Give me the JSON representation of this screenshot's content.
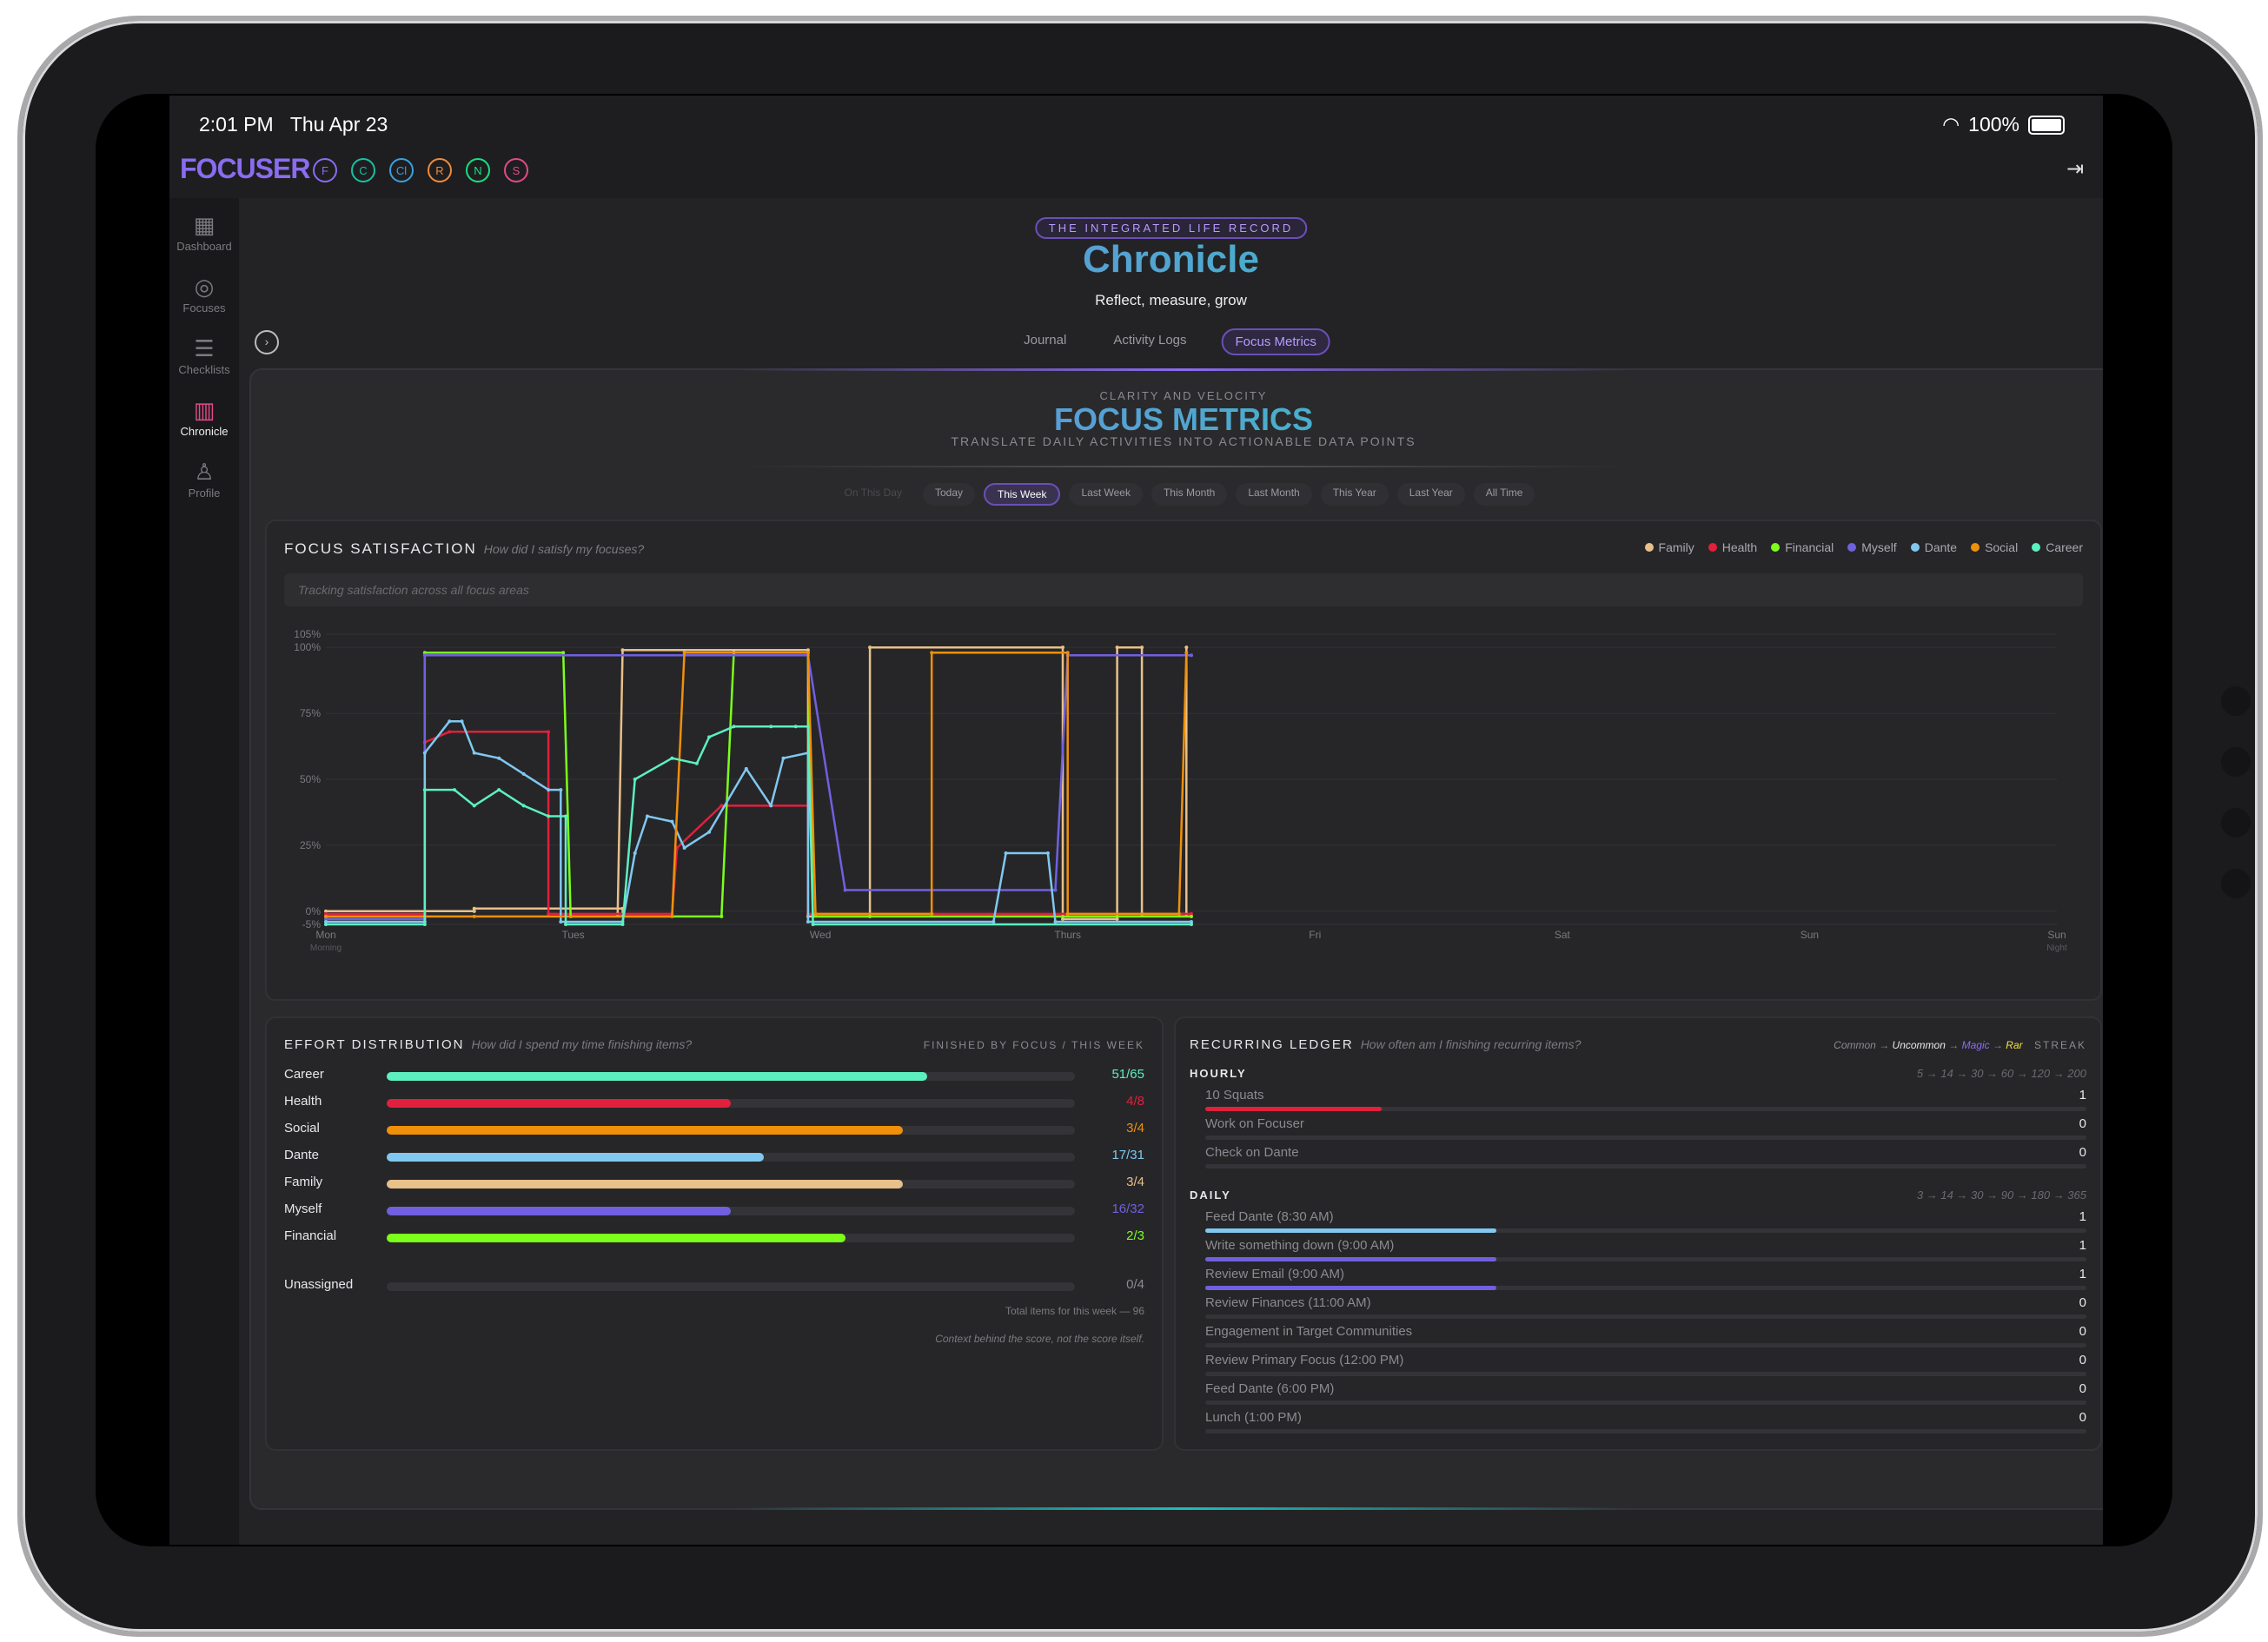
{
  "status": {
    "time": "2:01 PM",
    "date": "Thu Apr 23",
    "battery": "100%"
  },
  "app": {
    "logo": "FOCUSER"
  },
  "focus_chips": [
    {
      "label": "F",
      "color": "#8a6cf0"
    },
    {
      "label": "C",
      "color": "#18c0a0"
    },
    {
      "label": "Cl",
      "color": "#3aa0e0"
    },
    {
      "label": "R",
      "color": "#f08a3a"
    },
    {
      "label": "N",
      "color": "#18e080"
    },
    {
      "label": "S",
      "color": "#e04a8a"
    }
  ],
  "sidebar": {
    "items": [
      {
        "label": "Dashboard",
        "icon": "grid-icon",
        "glyph": "▦"
      },
      {
        "label": "Focuses",
        "icon": "target-icon",
        "glyph": "◎"
      },
      {
        "label": "Checklists",
        "icon": "list-icon",
        "glyph": "☰"
      },
      {
        "label": "Chronicle",
        "icon": "books-icon",
        "glyph": "▥"
      },
      {
        "label": "Profile",
        "icon": "user-icon",
        "glyph": "♙"
      }
    ]
  },
  "header": {
    "pill": "THE INTEGRATED LIFE RECORD",
    "title": "Chronicle",
    "subtitle": "Reflect, measure, grow",
    "tabs": [
      "Journal",
      "Activity Logs",
      "Focus Metrics"
    ]
  },
  "metrics": {
    "eyebrow": "CLARITY AND VELOCITY",
    "title": "FOCUS METRICS",
    "tagline": "TRANSLATE DAILY ACTIVITIES INTO ACTIONABLE DATA POINTS",
    "ranges": [
      "On This Day",
      "Today",
      "This Week",
      "Last Week",
      "This Month",
      "Last Month",
      "This Year",
      "Last Year",
      "All Time"
    ]
  },
  "satisfaction": {
    "title": "FOCUS SATISFACTION",
    "question": "How did I satisfy my focuses?",
    "hint": "Tracking satisfaction across all focus areas"
  },
  "chart_data": {
    "type": "line",
    "title": "FOCUS SATISFACTION",
    "y_ticks": [
      "105%",
      "100%",
      "75%",
      "50%",
      "25%",
      "0%",
      "-5%"
    ],
    "y_tick_values": [
      105,
      100,
      75,
      50,
      25,
      0,
      -5
    ],
    "ylim": [
      -5,
      105
    ],
    "x_ticks": [
      "Mon",
      "Tues",
      "Wed",
      "Thurs",
      "Fri",
      "Sat",
      "Sun",
      "Sun"
    ],
    "x_tick_sub": [
      "Morning",
      "",
      "",
      "",
      "",
      "",
      "",
      "Night"
    ],
    "xlim": [
      0,
      7
    ],
    "legend_position": "top-right",
    "series": [
      {
        "name": "Family",
        "color": "#e8c08a",
        "points": [
          [
            0,
            0
          ],
          [
            0.6,
            0
          ],
          [
            0.6,
            1
          ],
          [
            1.2,
            1
          ],
          [
            1.2,
            -1
          ],
          [
            1.18,
            -1
          ],
          [
            1.2,
            99
          ],
          [
            1.95,
            99
          ],
          [
            1.95,
            -2
          ],
          [
            2.2,
            -2
          ],
          [
            2.2,
            100
          ],
          [
            2.98,
            100
          ],
          [
            2.98,
            -3
          ],
          [
            3.2,
            -3
          ],
          [
            3.2,
            100
          ],
          [
            3.3,
            100
          ],
          [
            3.3,
            -1
          ],
          [
            3.48,
            -1
          ],
          [
            3.48,
            100
          ]
        ]
      },
      {
        "name": "Health",
        "color": "#e0203c",
        "points": [
          [
            0,
            -1
          ],
          [
            0.4,
            -1
          ],
          [
            0.4,
            64
          ],
          [
            0.5,
            68
          ],
          [
            0.9,
            68
          ],
          [
            0.9,
            -1
          ],
          [
            1.4,
            -1
          ],
          [
            1.42,
            24
          ],
          [
            1.6,
            40
          ],
          [
            1.95,
            40
          ],
          [
            1.95,
            -1
          ],
          [
            3.5,
            -1
          ]
        ]
      },
      {
        "name": "Financial",
        "color": "#7cff1a",
        "points": [
          [
            0,
            -2
          ],
          [
            0.4,
            -2
          ],
          [
            0.4,
            98
          ],
          [
            0.96,
            98
          ],
          [
            0.99,
            -2
          ],
          [
            1.6,
            -2
          ],
          [
            1.65,
            98
          ],
          [
            1.95,
            98
          ],
          [
            1.97,
            -2
          ],
          [
            3.5,
            -2
          ]
        ]
      },
      {
        "name": "Myself",
        "color": "#7060e0",
        "points": [
          [
            0,
            -3
          ],
          [
            0.4,
            -3
          ],
          [
            0.4,
            97
          ],
          [
            1.95,
            97
          ],
          [
            2.1,
            8
          ],
          [
            2.95,
            8
          ],
          [
            3,
            97
          ],
          [
            3.5,
            97
          ]
        ]
      },
      {
        "name": "Dante",
        "color": "#80c8f0",
        "points": [
          [
            0,
            -4
          ],
          [
            0.4,
            -4
          ],
          [
            0.4,
            60
          ],
          [
            0.5,
            72
          ],
          [
            0.55,
            72
          ],
          [
            0.6,
            60
          ],
          [
            0.7,
            58
          ],
          [
            0.8,
            52
          ],
          [
            0.9,
            46
          ],
          [
            0.95,
            46
          ],
          [
            0.95,
            -4
          ],
          [
            1.2,
            -4
          ],
          [
            1.25,
            22
          ],
          [
            1.3,
            36
          ],
          [
            1.4,
            34
          ],
          [
            1.45,
            24
          ],
          [
            1.55,
            30
          ],
          [
            1.7,
            54
          ],
          [
            1.8,
            40
          ],
          [
            1.85,
            58
          ],
          [
            1.95,
            60
          ],
          [
            1.95,
            -4
          ],
          [
            2.7,
            -4
          ],
          [
            2.75,
            22
          ],
          [
            2.92,
            22
          ],
          [
            2.95,
            -4
          ],
          [
            3.5,
            -4
          ]
        ]
      },
      {
        "name": "Social",
        "color": "#f0900a",
        "points": [
          [
            0,
            -2
          ],
          [
            0.6,
            -2
          ],
          [
            1.4,
            -2
          ],
          [
            1.45,
            98
          ],
          [
            1.95,
            98
          ],
          [
            1.98,
            -1
          ],
          [
            2.45,
            -1
          ],
          [
            2.45,
            98
          ],
          [
            3,
            98
          ],
          [
            3,
            -1
          ],
          [
            3.45,
            -1
          ],
          [
            3.48,
            98
          ]
        ]
      },
      {
        "name": "Career",
        "color": "#5cf0c0",
        "points": [
          [
            0,
            -5
          ],
          [
            0.4,
            -5
          ],
          [
            0.4,
            46
          ],
          [
            0.52,
            46
          ],
          [
            0.6,
            40
          ],
          [
            0.7,
            46
          ],
          [
            0.8,
            40
          ],
          [
            0.9,
            36
          ],
          [
            0.97,
            36
          ],
          [
            0.97,
            -5
          ],
          [
            1.2,
            -5
          ],
          [
            1.25,
            50
          ],
          [
            1.4,
            58
          ],
          [
            1.5,
            56
          ],
          [
            1.55,
            66
          ],
          [
            1.65,
            70
          ],
          [
            1.8,
            70
          ],
          [
            1.9,
            70
          ],
          [
            1.95,
            70
          ],
          [
            1.97,
            -5
          ],
          [
            3.5,
            -5
          ]
        ]
      }
    ]
  },
  "effort": {
    "title": "EFFORT DISTRIBUTION",
    "question": "How did I spend my time finishing items?",
    "meta": "FINISHED BY FOCUS / THIS WEEK",
    "rows": [
      {
        "label": "Career",
        "value": "51/65",
        "fraction": 0.785,
        "color": "#5cf0c0"
      },
      {
        "label": "Health",
        "value": "4/8",
        "fraction": 0.5,
        "color": "#e0203c"
      },
      {
        "label": "Social",
        "value": "3/4",
        "fraction": 0.75,
        "color": "#f0900a"
      },
      {
        "label": "Dante",
        "value": "17/31",
        "fraction": 0.548,
        "color": "#80c8f0"
      },
      {
        "label": "Family",
        "value": "3/4",
        "fraction": 0.75,
        "color": "#e8c08a"
      },
      {
        "label": "Myself",
        "value": "16/32",
        "fraction": 0.5,
        "color": "#7060e0"
      },
      {
        "label": "Financial",
        "value": "2/3",
        "fraction": 0.667,
        "color": "#7cff1a"
      }
    ],
    "unassigned": {
      "label": "Unassigned",
      "value": "0/4",
      "fraction": 0
    },
    "total": "Total items for this week — 96",
    "footnote": "Context behind the score, not the score itself."
  },
  "ledger": {
    "title": "RECURRING LEDGER",
    "question": "How often am I finishing recurring items?",
    "tiers": {
      "common": "Common",
      "uncommon": "Uncommon",
      "magic": "Magic",
      "rare": "Rar",
      "arrow": "→",
      "streak": "STREAK"
    },
    "hourly": {
      "label": "HOURLY",
      "steps": "5 → 14 → 30 → 60 → 120 → 200",
      "items": [
        {
          "name": "10 Squats",
          "count": "1",
          "fraction": 0.2,
          "color": "#e0203c"
        },
        {
          "name": "Work on Focuser",
          "count": "0",
          "fraction": 0,
          "color": "#e0203c"
        },
        {
          "name": "Check on Dante",
          "count": "0",
          "fraction": 0,
          "color": "#80c8f0"
        }
      ]
    },
    "daily": {
      "label": "DAILY",
      "steps": "3 → 14 → 30 → 90 → 180 → 365",
      "items": [
        {
          "name": "Feed Dante (8:30 AM)",
          "count": "1",
          "fraction": 0.33,
          "color": "#80c8f0"
        },
        {
          "name": "Write something down (9:00 AM)",
          "count": "1",
          "fraction": 0.33,
          "color": "#7060e0"
        },
        {
          "name": "Review Email (9:00 AM)",
          "count": "1",
          "fraction": 0.33,
          "color": "#7060e0"
        },
        {
          "name": "Review Finances (11:00 AM)",
          "count": "0",
          "fraction": 0,
          "color": "#7cff1a"
        },
        {
          "name": "Engagement in Target Communities",
          "count": "0",
          "fraction": 0,
          "color": "#5cf0c0"
        },
        {
          "name": "Review Primary Focus (12:00 PM)",
          "count": "0",
          "fraction": 0,
          "color": "#5cf0c0"
        },
        {
          "name": "Feed Dante (6:00 PM)",
          "count": "0",
          "fraction": 0,
          "color": "#80c8f0"
        },
        {
          "name": "Lunch (1:00 PM)",
          "count": "0",
          "fraction": 0,
          "color": "#e8c08a"
        }
      ]
    }
  }
}
